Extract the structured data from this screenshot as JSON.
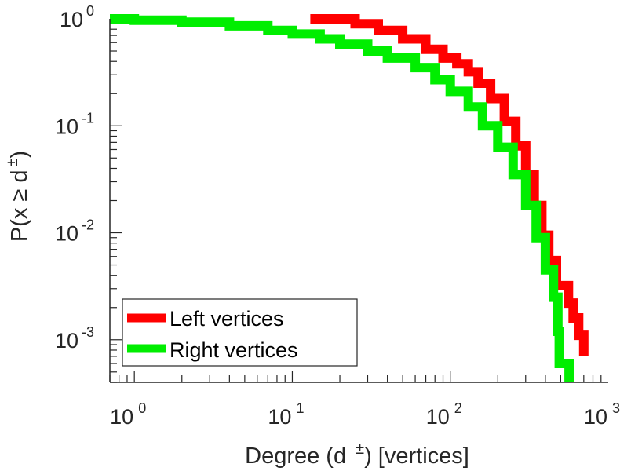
{
  "chart_data": {
    "type": "line",
    "scale": {
      "x": "log",
      "y": "log"
    },
    "xlim": [
      0.7,
      1000
    ],
    "ylim": [
      0.0004,
      1.0
    ],
    "xlabel": {
      "main": "Degree (d",
      "sup": "±",
      "tail": ") [vertices]"
    },
    "ylabel": {
      "main": "P(x ≥ d",
      "sup": "±",
      "tail": ")"
    },
    "x_ticks": [
      {
        "value": 1,
        "base": "10",
        "exp": "0"
      },
      {
        "value": 10,
        "base": "10",
        "exp": "1"
      },
      {
        "value": 100,
        "base": "10",
        "exp": "2"
      },
      {
        "value": 1000,
        "base": "10",
        "exp": "3"
      }
    ],
    "y_ticks": [
      {
        "value": 1,
        "base": "10",
        "exp": "0"
      },
      {
        "value": 0.1,
        "base": "10",
        "exp": "-1"
      },
      {
        "value": 0.01,
        "base": "10",
        "exp": "-2"
      },
      {
        "value": 0.001,
        "base": "10",
        "exp": "-3"
      }
    ],
    "legend": {
      "position": "bottom-left"
    },
    "series": [
      {
        "name": "Left vertices",
        "color": "#ff0000",
        "points": [
          [
            13,
            1.0
          ],
          [
            20,
            1.0
          ],
          [
            25,
            0.9
          ],
          [
            35,
            0.78
          ],
          [
            50,
            0.65
          ],
          [
            70,
            0.52
          ],
          [
            90,
            0.43
          ],
          [
            110,
            0.38
          ],
          [
            130,
            0.32
          ],
          [
            150,
            0.25
          ],
          [
            180,
            0.18
          ],
          [
            220,
            0.11
          ],
          [
            260,
            0.065
          ],
          [
            300,
            0.035
          ],
          [
            340,
            0.018
          ],
          [
            380,
            0.0095
          ],
          [
            420,
            0.0055
          ],
          [
            470,
            0.0032
          ],
          [
            520,
            0.0032
          ],
          [
            560,
            0.0022
          ],
          [
            600,
            0.0016
          ],
          [
            650,
            0.0011
          ],
          [
            700,
            0.0007
          ]
        ]
      },
      {
        "name": "Right vertices",
        "color": "#00ee00",
        "points": [
          [
            0.7,
            1.0
          ],
          [
            1,
            0.97
          ],
          [
            2,
            0.93
          ],
          [
            4,
            0.86
          ],
          [
            7,
            0.78
          ],
          [
            10,
            0.72
          ],
          [
            15,
            0.65
          ],
          [
            20,
            0.58
          ],
          [
            30,
            0.5
          ],
          [
            40,
            0.43
          ],
          [
            60,
            0.35
          ],
          [
            80,
            0.27
          ],
          [
            100,
            0.21
          ],
          [
            130,
            0.15
          ],
          [
            160,
            0.1
          ],
          [
            200,
            0.063
          ],
          [
            250,
            0.035
          ],
          [
            300,
            0.018
          ],
          [
            350,
            0.009
          ],
          [
            400,
            0.0045
          ],
          [
            450,
            0.0025
          ],
          [
            480,
            0.0012
          ],
          [
            490,
            0.0006
          ],
          [
            560,
            0.0006
          ],
          [
            565,
            0.0004
          ]
        ]
      }
    ]
  }
}
